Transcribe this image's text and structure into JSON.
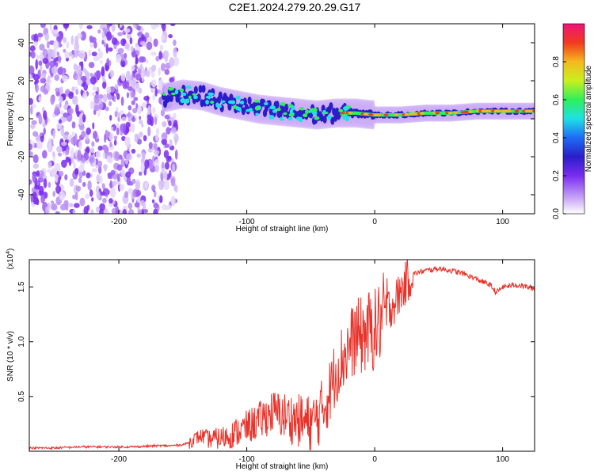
{
  "title": "C2E1.2024.279.20.29.G17",
  "chart_data": [
    {
      "type": "heatmap",
      "xlabel": "Height of straight line (km)",
      "ylabel": "Frequency (Hz)",
      "xlim": [
        -270,
        125
      ],
      "ylim": [
        -50,
        50
      ],
      "xticks": [
        -200,
        -100,
        0,
        100
      ],
      "xtick_labels": [
        "-200",
        "-100",
        "0",
        "100"
      ],
      "yticks": [
        -40,
        -20,
        0,
        20,
        40
      ],
      "ytick_labels": [
        "-40",
        "-20",
        "0",
        "20",
        "40"
      ],
      "colorbar": {
        "label": "Normalized spectral amplitude",
        "range": [
          0,
          1
        ],
        "ticks": [
          0.0,
          0.2,
          0.4,
          0.6,
          0.8
        ],
        "tick_labels": [
          "0.0",
          "0.2",
          "0.4",
          "0.6",
          "0.8"
        ],
        "colors": [
          "#ffffff",
          "#c9a8f5",
          "#7a2cf0",
          "#2a1ec8",
          "#1e6cf5",
          "#1ee0e6",
          "#2ef05a",
          "#c8f01e",
          "#f5b91e",
          "#f03a1e",
          "#f0147a"
        ]
      },
      "noise_region": {
        "x": [
          -270,
          -155
        ],
        "y": [
          -50,
          50
        ]
      },
      "ridge": [
        {
          "x": -165,
          "y": 11
        },
        {
          "x": -150,
          "y": 13
        },
        {
          "x": -135,
          "y": 12
        },
        {
          "x": -120,
          "y": 9
        },
        {
          "x": -105,
          "y": 7
        },
        {
          "x": -90,
          "y": 5
        },
        {
          "x": -75,
          "y": 4
        },
        {
          "x": -60,
          "y": 3
        },
        {
          "x": -45,
          "y": 2
        },
        {
          "x": -30,
          "y": 3
        },
        {
          "x": -15,
          "y": 3
        },
        {
          "x": 0,
          "y": 2
        },
        {
          "x": 20,
          "y": 2
        },
        {
          "x": 40,
          "y": 3
        },
        {
          "x": 60,
          "y": 3
        },
        {
          "x": 80,
          "y": 4
        },
        {
          "x": 100,
          "y": 4
        },
        {
          "x": 125,
          "y": 4
        }
      ]
    },
    {
      "type": "line",
      "xlabel": "Height of straight line (km)",
      "ylabel": "SNR (10 * v/v)",
      "scale_label": "(x10",
      "scale_exp": "4",
      "scale_close": ")",
      "xlim": [
        -270,
        125
      ],
      "ylim": [
        0,
        1.75
      ],
      "xticks": [
        -200,
        -100,
        0,
        100
      ],
      "xtick_labels": [
        "-200",
        "-100",
        "0",
        "100"
      ],
      "yticks": [
        0.5,
        1.0,
        1.5
      ],
      "ytick_labels": [
        "0.5",
        "1.0",
        "1.5"
      ],
      "color": "#e8322a",
      "series": [
        {
          "x": [
            -270,
            -250,
            -230,
            -210,
            -190,
            -170,
            -160,
            -150,
            -145,
            -140,
            -135,
            -130,
            -120,
            -110,
            -100,
            -90,
            -80,
            -70,
            -60,
            -50,
            -45,
            -40,
            -35,
            -30,
            -25,
            -20,
            -15,
            -10,
            -5,
            0,
            5,
            10,
            15,
            20,
            25,
            30,
            40,
            50,
            60,
            70,
            80,
            90,
            95,
            100,
            110,
            120,
            125
          ],
          "y": [
            0.03,
            0.03,
            0.04,
            0.04,
            0.04,
            0.05,
            0.05,
            0.06,
            0.08,
            0.12,
            0.14,
            0.11,
            0.12,
            0.16,
            0.22,
            0.28,
            0.36,
            0.32,
            0.28,
            0.25,
            0.3,
            0.4,
            0.55,
            0.75,
            0.85,
            0.95,
            1.05,
            1.05,
            1.1,
            1.1,
            1.2,
            1.3,
            1.35,
            1.45,
            1.55,
            1.62,
            1.65,
            1.67,
            1.65,
            1.62,
            1.57,
            1.52,
            1.45,
            1.5,
            1.52,
            1.5,
            1.48
          ]
        }
      ]
    }
  ]
}
